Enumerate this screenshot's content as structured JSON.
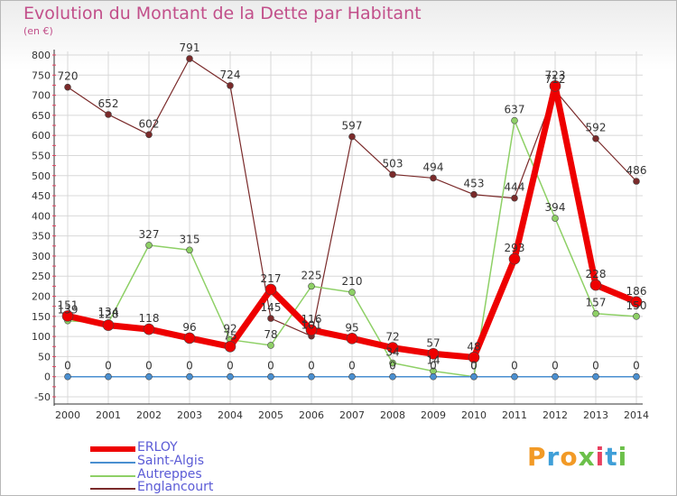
{
  "title": "Evolution du Montant de la Dette par Habitant",
  "subtitle": "(en €)",
  "logo": "Proxiti",
  "colors": {
    "title": "#c24f8a",
    "grid": "#d8d8d8",
    "axis": "#333333",
    "tick_red": "#e84060",
    "legend_text": "#5b5bd6"
  },
  "chart_data": {
    "type": "line",
    "x": [
      "2000",
      "2001",
      "2002",
      "2003",
      "2004",
      "2005",
      "2006",
      "2007",
      "2008",
      "2009",
      "2010",
      "2011",
      "2012",
      "2013",
      "2014"
    ],
    "ylim": [
      -50,
      800
    ],
    "yticks": [
      -50,
      0,
      50,
      100,
      150,
      200,
      250,
      300,
      350,
      400,
      450,
      500,
      550,
      600,
      650,
      700,
      750,
      800
    ],
    "grid": true,
    "legend_position": "bottom-left",
    "series": [
      {
        "name": "Englancourt",
        "color": "#7a2a2a",
        "values": [
          720,
          652,
          602,
          791,
          724,
          145,
          101,
          597,
          503,
          494,
          453,
          444,
          712,
          592,
          486
        ]
      },
      {
        "name": "Autreppes",
        "color": "#8ed066",
        "values": [
          139,
          134,
          327,
          315,
          92,
          78,
          225,
          210,
          34,
          14,
          0,
          637,
          394,
          157,
          150
        ]
      },
      {
        "name": "Saint-Algis",
        "color": "#4a8fd0",
        "values": [
          0,
          0,
          0,
          0,
          0,
          0,
          0,
          0,
          0,
          0,
          0,
          0,
          0,
          0,
          0
        ]
      },
      {
        "name": "ERLOY",
        "color": "#ee0000",
        "values": [
          151,
          128,
          118,
          96,
          75,
          217,
          116,
          95,
          72,
          57,
          48,
          293,
          723,
          228,
          186
        ]
      }
    ]
  }
}
